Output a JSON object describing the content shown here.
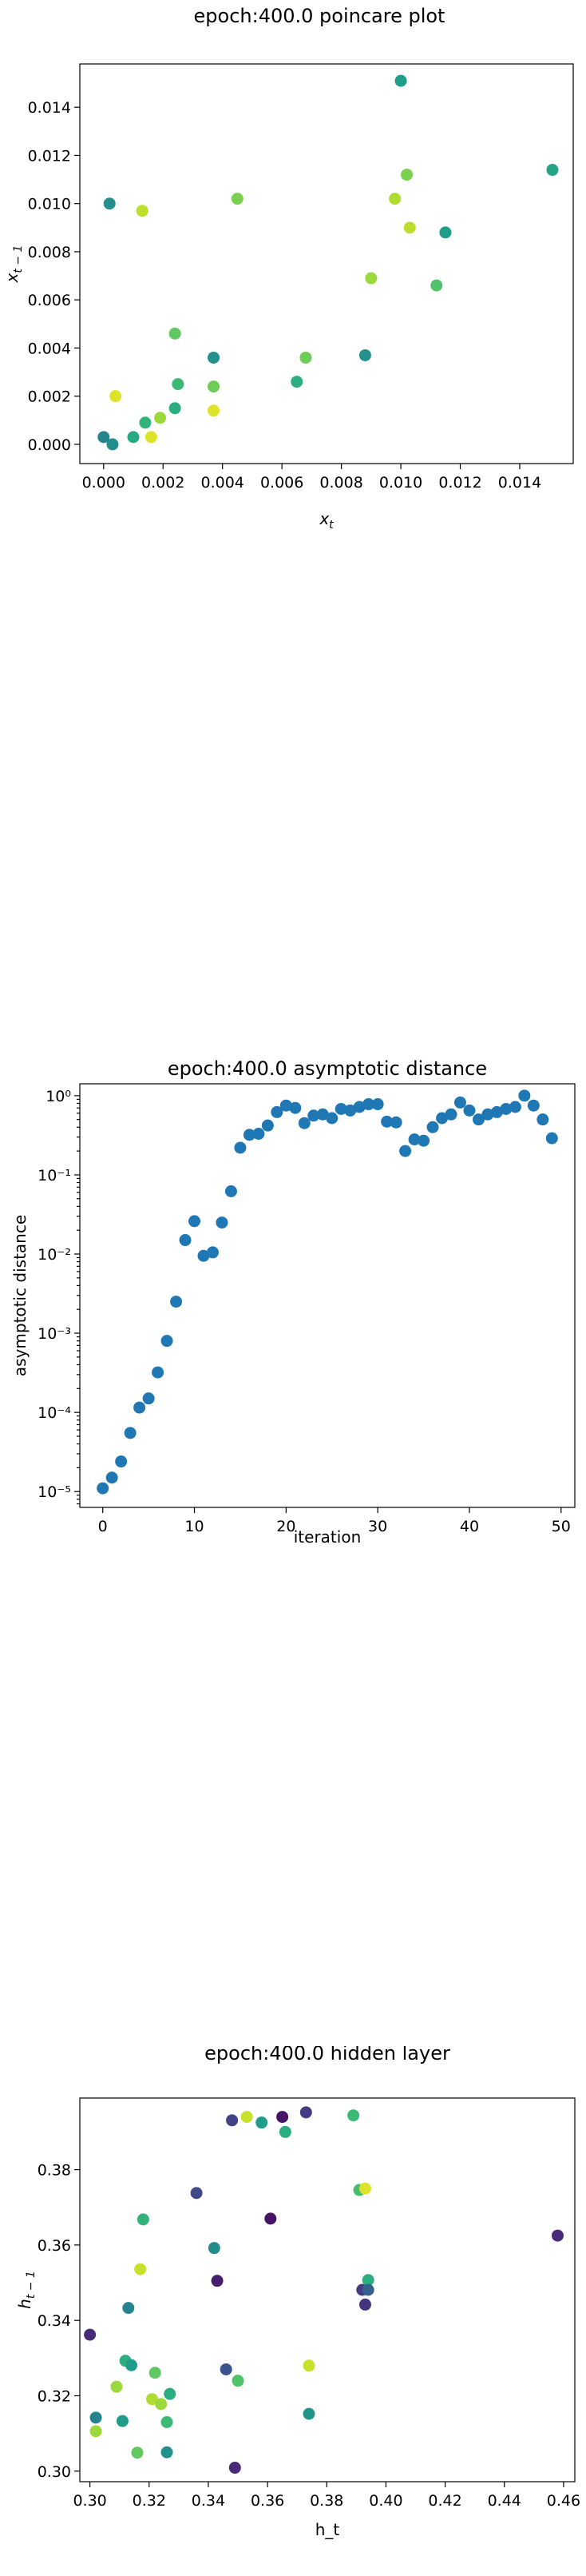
{
  "chart_data": [
    {
      "type": "scatter",
      "title": "epoch:400.0 poincare plot",
      "xlabel": "x_t",
      "ylabel": "x_{t-1}",
      "xlim": [
        -0.0008,
        0.0158
      ],
      "ylim": [
        -0.0008,
        0.0158
      ],
      "xticks": [
        0.0,
        0.002,
        0.004,
        0.006,
        0.008,
        0.01,
        0.012,
        0.014
      ],
      "xtick_labels": [
        "0.000",
        "0.002",
        "0.004",
        "0.006",
        "0.008",
        "0.010",
        "0.012",
        "0.014"
      ],
      "yticks": [
        0.0,
        0.002,
        0.004,
        0.006,
        0.008,
        0.01,
        0.012,
        0.014
      ],
      "ytick_labels": [
        "0.000",
        "0.002",
        "0.004",
        "0.006",
        "0.008",
        "0.010",
        "0.012",
        "0.014"
      ],
      "colormap": "viridis",
      "points": [
        {
          "x": 0.0,
          "y": 0.0003,
          "c": 0.45
        },
        {
          "x": 0.0003,
          "y": 0.0,
          "c": 0.5
        },
        {
          "x": 0.0002,
          "y": 0.01,
          "c": 0.5
        },
        {
          "x": 0.0004,
          "y": 0.002,
          "c": 0.95
        },
        {
          "x": 0.001,
          "y": 0.0003,
          "c": 0.6
        },
        {
          "x": 0.0013,
          "y": 0.0097,
          "c": 0.9
        },
        {
          "x": 0.0014,
          "y": 0.0009,
          "c": 0.65
        },
        {
          "x": 0.0016,
          "y": 0.0003,
          "c": 0.95
        },
        {
          "x": 0.0019,
          "y": 0.0011,
          "c": 0.85
        },
        {
          "x": 0.0024,
          "y": 0.0046,
          "c": 0.75
        },
        {
          "x": 0.0024,
          "y": 0.0015,
          "c": 0.62
        },
        {
          "x": 0.0025,
          "y": 0.0025,
          "c": 0.68
        },
        {
          "x": 0.0037,
          "y": 0.0036,
          "c": 0.5
        },
        {
          "x": 0.0037,
          "y": 0.0024,
          "c": 0.78
        },
        {
          "x": 0.0037,
          "y": 0.0014,
          "c": 0.95
        },
        {
          "x": 0.0045,
          "y": 0.0102,
          "c": 0.8
        },
        {
          "x": 0.0065,
          "y": 0.0026,
          "c": 0.62
        },
        {
          "x": 0.0068,
          "y": 0.0036,
          "c": 0.78
        },
        {
          "x": 0.0088,
          "y": 0.0037,
          "c": 0.5
        },
        {
          "x": 0.009,
          "y": 0.0069,
          "c": 0.85
        },
        {
          "x": 0.0098,
          "y": 0.0102,
          "c": 0.88
        },
        {
          "x": 0.01,
          "y": 0.0151,
          "c": 0.55
        },
        {
          "x": 0.0102,
          "y": 0.0112,
          "c": 0.8
        },
        {
          "x": 0.0103,
          "y": 0.009,
          "c": 0.9
        },
        {
          "x": 0.0112,
          "y": 0.0066,
          "c": 0.72
        },
        {
          "x": 0.0115,
          "y": 0.0088,
          "c": 0.55
        },
        {
          "x": 0.0151,
          "y": 0.0114,
          "c": 0.58
        }
      ]
    },
    {
      "type": "scatter",
      "title": "epoch:400.0 asymptotic distance",
      "xlabel": "iteration",
      "ylabel": "asymptotic distance",
      "yscale": "log",
      "xlim": [
        -2.5,
        51.5
      ],
      "ylim_log10": [
        -5.2,
        0.15
      ],
      "xticks": [
        0,
        10,
        20,
        30,
        40,
        50
      ],
      "xtick_labels": [
        "0",
        "10",
        "20",
        "30",
        "40",
        "50"
      ],
      "yticks_log10": [
        -5,
        -4,
        -3,
        -2,
        -1,
        0
      ],
      "ytick_labels": [
        "10⁻⁵",
        "10⁻⁴",
        "10⁻³",
        "10⁻²",
        "10⁻¹",
        "10⁰"
      ],
      "color": "#1f77b4",
      "x": [
        0,
        1,
        2,
        3,
        4,
        5,
        6,
        7,
        8,
        9,
        10,
        11,
        12,
        13,
        14,
        15,
        16,
        17,
        18,
        19,
        20,
        21,
        22,
        23,
        24,
        25,
        26,
        27,
        28,
        29,
        30,
        31,
        32,
        33,
        34,
        35,
        36,
        37,
        38,
        39,
        40,
        41,
        42,
        43,
        44,
        45,
        46,
        47,
        48,
        49
      ],
      "y": [
        1.1e-05,
        1.5e-05,
        2.4e-05,
        5.5e-05,
        0.000115,
        0.00015,
        0.00032,
        0.0008,
        0.0025,
        0.015,
        0.026,
        0.0095,
        0.0105,
        0.025,
        0.062,
        0.22,
        0.32,
        0.33,
        0.42,
        0.62,
        0.75,
        0.7,
        0.45,
        0.56,
        0.58,
        0.52,
        0.68,
        0.65,
        0.72,
        0.78,
        0.78,
        0.47,
        0.46,
        0.2,
        0.28,
        0.27,
        0.4,
        0.52,
        0.58,
        0.82,
        0.65,
        0.5,
        0.58,
        0.62,
        0.68,
        0.72,
        1.0,
        0.75,
        0.5,
        0.29
      ]
    },
    {
      "type": "scatter",
      "title": "epoch:400.0 hidden layer",
      "xlabel": "h_t",
      "ylabel": "h_{t-1}",
      "xlim": [
        0.2966,
        0.4638
      ],
      "ylim": [
        0.2972,
        0.399
      ],
      "xticks": [
        0.3,
        0.32,
        0.34,
        0.36,
        0.38,
        0.4,
        0.42,
        0.44,
        0.46
      ],
      "xtick_labels": [
        "0.30",
        "0.32",
        "0.34",
        "0.36",
        "0.38",
        "0.40",
        "0.42",
        "0.44",
        "0.46"
      ],
      "yticks": [
        0.3,
        0.32,
        0.34,
        0.36,
        0.38
      ],
      "ytick_labels": [
        "0.30",
        "0.32",
        "0.34",
        "0.36",
        "0.38"
      ],
      "colormap": "viridis",
      "points": [
        {
          "x": 0.3,
          "y": 0.3362,
          "c": 0.12
        },
        {
          "x": 0.302,
          "y": 0.3142,
          "c": 0.45
        },
        {
          "x": 0.302,
          "y": 0.3106,
          "c": 0.85
        },
        {
          "x": 0.309,
          "y": 0.3224,
          "c": 0.85
        },
        {
          "x": 0.311,
          "y": 0.3133,
          "c": 0.55
        },
        {
          "x": 0.312,
          "y": 0.3293,
          "c": 0.62
        },
        {
          "x": 0.313,
          "y": 0.3433,
          "c": 0.45
        },
        {
          "x": 0.314,
          "y": 0.3281,
          "c": 0.55
        },
        {
          "x": 0.316,
          "y": 0.3049,
          "c": 0.75
        },
        {
          "x": 0.317,
          "y": 0.3536,
          "c": 0.92
        },
        {
          "x": 0.318,
          "y": 0.3668,
          "c": 0.65
        },
        {
          "x": 0.321,
          "y": 0.3191,
          "c": 0.88
        },
        {
          "x": 0.322,
          "y": 0.3261,
          "c": 0.75
        },
        {
          "x": 0.324,
          "y": 0.3178,
          "c": 0.85
        },
        {
          "x": 0.326,
          "y": 0.305,
          "c": 0.5
        },
        {
          "x": 0.326,
          "y": 0.313,
          "c": 0.68
        },
        {
          "x": 0.327,
          "y": 0.3205,
          "c": 0.62
        },
        {
          "x": 0.336,
          "y": 0.3738,
          "c": 0.22
        },
        {
          "x": 0.342,
          "y": 0.3592,
          "c": 0.48
        },
        {
          "x": 0.343,
          "y": 0.3505,
          "c": 0.08
        },
        {
          "x": 0.346,
          "y": 0.327,
          "c": 0.25
        },
        {
          "x": 0.348,
          "y": 0.3931,
          "c": 0.2
        },
        {
          "x": 0.349,
          "y": 0.3009,
          "c": 0.12
        },
        {
          "x": 0.35,
          "y": 0.324,
          "c": 0.72
        },
        {
          "x": 0.353,
          "y": 0.394,
          "c": 0.92
        },
        {
          "x": 0.358,
          "y": 0.3925,
          "c": 0.55
        },
        {
          "x": 0.361,
          "y": 0.367,
          "c": 0.05
        },
        {
          "x": 0.365,
          "y": 0.394,
          "c": 0.05
        },
        {
          "x": 0.366,
          "y": 0.39,
          "c": 0.62
        },
        {
          "x": 0.373,
          "y": 0.3952,
          "c": 0.18
        },
        {
          "x": 0.374,
          "y": 0.328,
          "c": 0.92
        },
        {
          "x": 0.374,
          "y": 0.3152,
          "c": 0.52
        },
        {
          "x": 0.389,
          "y": 0.3944,
          "c": 0.68
        },
        {
          "x": 0.391,
          "y": 0.3746,
          "c": 0.7
        },
        {
          "x": 0.392,
          "y": 0.3481,
          "c": 0.18
        },
        {
          "x": 0.393,
          "y": 0.3442,
          "c": 0.15
        },
        {
          "x": 0.393,
          "y": 0.375,
          "c": 0.95
        },
        {
          "x": 0.394,
          "y": 0.3507,
          "c": 0.62
        },
        {
          "x": 0.394,
          "y": 0.3481,
          "c": 0.3
        },
        {
          "x": 0.458,
          "y": 0.3625,
          "c": 0.12
        }
      ]
    }
  ]
}
